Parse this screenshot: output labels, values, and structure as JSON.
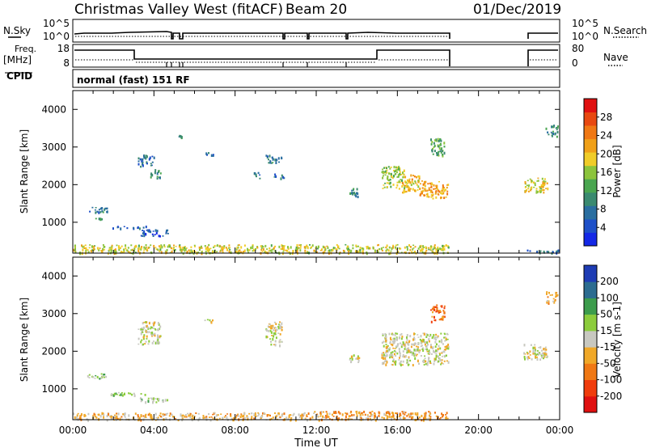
{
  "header": {
    "station": "Christmas Valley West (fitACF)",
    "beam": "Beam 20",
    "date": "01/Dec/2019"
  },
  "noise_panel": {
    "left_label": "N.Sky",
    "left_ticks": [
      "10^5",
      "10^0"
    ],
    "right_ticks": [
      "10^5",
      "10^0"
    ],
    "right_label": "N.Search"
  },
  "freq_panel": {
    "left_label_line1": "Freq.",
    "left_label_line2": "[MHz]",
    "left_ticks": [
      "18",
      "8"
    ],
    "right_ticks": [
      "80",
      "0"
    ],
    "right_label": "Nave"
  },
  "cpid": {
    "label": "CPID",
    "mode": "normal (fast) 151 RF"
  },
  "colors": {
    "power_scale": [
      "#1428e6",
      "#1e50c8",
      "#2a6ea0",
      "#3a8a70",
      "#4aa650",
      "#8cc43c",
      "#f0cc28",
      "#f0a018",
      "#f07814",
      "#e84810",
      "#e01010"
    ],
    "velocity_scale": [
      "#e01010",
      "#f03c0c",
      "#f07814",
      "#f0a828",
      "#c8c8c0",
      "#8ccc3c",
      "#3c9c4c",
      "#2c6c90",
      "#1e3cb4"
    ]
  },
  "chart_data": [
    {
      "type": "heatmap",
      "panel": "power",
      "title": "",
      "xlabel": "",
      "ylabel": "Slant Range [km]",
      "x_unit": "hours UT",
      "xlim": [
        0,
        24
      ],
      "ylim": [
        180,
        4500
      ],
      "y_ticks": [
        1000,
        2000,
        3000,
        4000
      ],
      "colorbar": {
        "label": "Power [dB]",
        "range": [
          0,
          32
        ],
        "ticks": [
          "4",
          "8",
          "12",
          "16",
          "20",
          "24",
          "28"
        ]
      },
      "scatter_regions": [
        {
          "t0": 0.0,
          "t1": 18.5,
          "r0": 190,
          "r1": 420,
          "value": 18,
          "note": "continuous near-range band"
        },
        {
          "t0": 0.7,
          "t1": 1.7,
          "r0": 1280,
          "r1": 1420,
          "value": 8
        },
        {
          "t0": 1.0,
          "t1": 1.5,
          "r0": 1080,
          "r1": 1130,
          "value": 9
        },
        {
          "t0": 1.8,
          "t1": 3.6,
          "r0": 860,
          "r1": 920,
          "value": 6
        },
        {
          "t0": 3.3,
          "t1": 4.7,
          "r0": 650,
          "r1": 820,
          "value": 5
        },
        {
          "t0": 3.2,
          "t1": 4.0,
          "r0": 2500,
          "r1": 2800,
          "value": 8
        },
        {
          "t0": 3.8,
          "t1": 4.3,
          "r0": 2180,
          "r1": 2420,
          "value": 10
        },
        {
          "t0": 5.2,
          "t1": 5.4,
          "r0": 3230,
          "r1": 3330,
          "value": 10
        },
        {
          "t0": 6.4,
          "t1": 6.9,
          "r0": 2770,
          "r1": 2870,
          "value": 7
        },
        {
          "t0": 8.9,
          "t1": 9.2,
          "r0": 2180,
          "r1": 2360,
          "value": 9
        },
        {
          "t0": 9.5,
          "t1": 10.3,
          "r0": 2580,
          "r1": 2800,
          "value": 8
        },
        {
          "t0": 9.9,
          "t1": 10.4,
          "r0": 2180,
          "r1": 2310,
          "value": 8
        },
        {
          "t0": 13.6,
          "t1": 14.1,
          "r0": 1700,
          "r1": 1950,
          "value": 10
        },
        {
          "t0": 15.2,
          "t1": 16.4,
          "r0": 1900,
          "r1": 2500,
          "value": 16
        },
        {
          "t0": 16.2,
          "t1": 17.2,
          "r0": 1800,
          "r1": 2300,
          "value": 20
        },
        {
          "t0": 17.0,
          "t1": 18.5,
          "r0": 1650,
          "r1": 2100,
          "value": 22
        },
        {
          "t0": 17.6,
          "t1": 18.3,
          "r0": 2800,
          "r1": 3250,
          "value": 13
        },
        {
          "t0": 22.2,
          "t1": 23.4,
          "r0": 1800,
          "r1": 2200,
          "value": 18
        },
        {
          "t0": 23.3,
          "t1": 23.9,
          "r0": 3300,
          "r1": 3600,
          "value": 10
        },
        {
          "t0": 22.3,
          "t1": 23.9,
          "r0": 190,
          "r1": 280,
          "value": 8
        }
      ]
    },
    {
      "type": "heatmap",
      "panel": "velocity",
      "title": "",
      "xlabel": "Time UT",
      "ylabel": "Slant Range [km]",
      "x_unit": "hours UT",
      "xlim": [
        0,
        24
      ],
      "ylim": [
        180,
        4500
      ],
      "x_ticks": [
        "00:00",
        "04:00",
        "08:00",
        "12:00",
        "16:00",
        "20:00",
        "00:00"
      ],
      "y_ticks": [
        1000,
        2000,
        3000,
        4000
      ],
      "colorbar": {
        "label": "Velocity [m s-1]",
        "ticks": [
          "-200",
          "-100",
          "-50",
          "-15",
          "15",
          "50",
          "100",
          "200"
        ],
        "range": [
          -250,
          250
        ]
      },
      "scatter_regions": [
        {
          "t0": 0.0,
          "t1": 11.5,
          "r0": 190,
          "r1": 380,
          "value": -40
        },
        {
          "t0": 11.5,
          "t1": 18.5,
          "r0": 190,
          "r1": 420,
          "value": -70
        },
        {
          "t0": 0.7,
          "t1": 1.7,
          "r0": 1280,
          "r1": 1420,
          "value": 60
        },
        {
          "t0": 1.8,
          "t1": 3.6,
          "r0": 820,
          "r1": 920,
          "value": 35
        },
        {
          "t0": 3.3,
          "t1": 4.7,
          "r0": 650,
          "r1": 780,
          "value": 40
        },
        {
          "t0": 3.2,
          "t1": 4.3,
          "r0": 2200,
          "r1": 2800,
          "value": 0
        },
        {
          "t0": 6.4,
          "t1": 6.9,
          "r0": 2770,
          "r1": 2870,
          "value": 0
        },
        {
          "t0": 9.5,
          "t1": 10.3,
          "r0": 2180,
          "r1": 2800,
          "value": 0
        },
        {
          "t0": 13.6,
          "t1": 14.1,
          "r0": 1700,
          "r1": 1950,
          "value": 0
        },
        {
          "t0": 15.2,
          "t1": 18.5,
          "r0": 1650,
          "r1": 2500,
          "value": 0
        },
        {
          "t0": 17.6,
          "t1": 18.3,
          "r0": 2800,
          "r1": 3250,
          "value": -120
        },
        {
          "t0": 22.2,
          "t1": 23.4,
          "r0": 1800,
          "r1": 2200,
          "value": 0
        },
        {
          "t0": 23.3,
          "t1": 23.9,
          "r0": 3300,
          "r1": 3600,
          "value": -60
        }
      ]
    }
  ]
}
